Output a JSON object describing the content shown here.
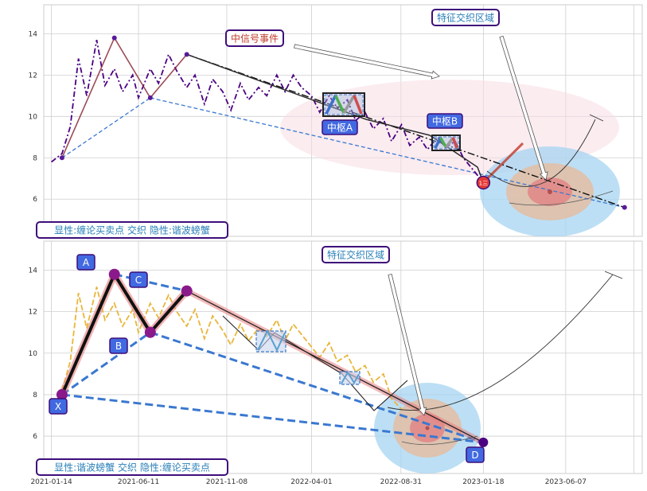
{
  "colors": {
    "background": "#ffffff",
    "grid": "#cfcfcf",
    "price_top": "#4b0082",
    "price_bottom": "#e8b63a",
    "zhongshu_box": "#3c78c8",
    "zone_outer": "#a6d4f2",
    "zone_mid": "#e0c0a8",
    "zone_inner": "#e08a8a",
    "callout_border": "#3d0e7a",
    "callout_text_red": "#c0392b",
    "callout_text_blue": "#2a7fb8",
    "pivot_fill": "#4169e1"
  },
  "chart_data": [
    {
      "type": "line",
      "panel": "top",
      "ylim": [
        4.2,
        15.4
      ],
      "yticks": [
        6,
        8,
        10,
        12,
        14
      ],
      "xlim": [
        "2021-01-01",
        "2023-10-15"
      ],
      "xticks": [
        "2021-01-14",
        "2021-06-11",
        "2021-11-08",
        "2022-04-01",
        "2022-08-31",
        "2023-01-18",
        "2023-06-07"
      ],
      "grid": true,
      "series": [
        {
          "style": "dash-dot",
          "x": [
            "2021-01-14",
            "2021-02-01",
            "2021-02-15",
            "2021-03-01",
            "2021-03-15",
            "2021-04-01",
            "2021-04-15",
            "2021-05-01",
            "2021-05-15",
            "2021-06-01",
            "2021-06-11",
            "2021-07-01",
            "2021-07-15",
            "2021-08-01",
            "2021-08-15",
            "2021-09-01",
            "2021-09-15",
            "2021-10-01",
            "2021-10-15",
            "2021-11-01",
            "2021-11-15",
            "2021-12-01",
            "2021-12-15",
            "2022-01-01",
            "2022-01-15",
            "2022-02-01",
            "2022-02-15",
            "2022-03-01",
            "2022-03-15",
            "2022-04-01",
            "2022-04-15",
            "2022-05-01",
            "2022-05-15",
            "2022-06-01",
            "2022-06-15",
            "2022-07-01",
            "2022-07-15",
            "2022-08-01",
            "2022-08-15",
            "2022-09-01",
            "2022-09-15",
            "2022-10-01",
            "2022-10-15",
            "2022-11-01",
            "2022-11-15",
            "2022-12-01",
            "2022-12-15",
            "2023-01-01",
            "2023-01-18"
          ],
          "y": [
            7.8,
            8.2,
            9.5,
            12.8,
            11.0,
            13.7,
            11.5,
            12.3,
            11.2,
            12.0,
            10.9,
            12.3,
            11.6,
            13.0,
            12.2,
            11.4,
            12.0,
            10.6,
            11.8,
            11.2,
            10.3,
            11.6,
            10.8,
            11.4,
            11.0,
            12.0,
            11.2,
            12.0,
            11.4,
            11.0,
            10.2,
            11.0,
            10.4,
            10.8,
            9.8,
            10.2,
            9.4,
            9.9,
            8.8,
            9.6,
            8.6,
            9.0,
            8.4,
            9.0,
            8.5,
            8.8,
            8.0,
            7.4,
            6.8
          ]
        }
      ],
      "pivots": [
        {
          "date": "2021-02-01",
          "value": 8.0
        },
        {
          "date": "2021-05-01",
          "value": 13.8
        },
        {
          "date": "2021-07-01",
          "value": 10.9
        },
        {
          "date": "2021-09-01",
          "value": 13.0
        },
        {
          "date": "2023-01-18",
          "value": 6.8
        },
        {
          "date": "2023-09-15",
          "value": 5.6
        }
      ],
      "labels": {
        "zhongshu_a": "中枢A",
        "zhongshu_b": "中枢B",
        "signal_event": "中信号事件",
        "feature_zone": "特征交织区域",
        "bottom_left": "显性:缠论买卖点 交织 隐性:谐波螃蟹",
        "marker": "1三"
      }
    },
    {
      "type": "line",
      "panel": "bottom",
      "ylim": [
        4.2,
        15.4
      ],
      "yticks": [
        6,
        8,
        10,
        12,
        14
      ],
      "grid": true,
      "series": [
        {
          "style": "dashed",
          "x": [
            "2021-02-01",
            "2021-02-15",
            "2021-03-01",
            "2021-03-15",
            "2021-04-01",
            "2021-04-15",
            "2021-05-01",
            "2021-05-15",
            "2021-06-01",
            "2021-06-11",
            "2021-07-01",
            "2021-07-15",
            "2021-08-01",
            "2021-08-15",
            "2021-09-01",
            "2021-09-15",
            "2021-10-01",
            "2021-10-15",
            "2021-11-01",
            "2021-11-15",
            "2021-12-01",
            "2021-12-15",
            "2022-01-01",
            "2022-01-15",
            "2022-02-01",
            "2022-02-15",
            "2022-03-01",
            "2022-03-15",
            "2022-04-01",
            "2022-04-15",
            "2022-05-01",
            "2022-05-15",
            "2022-06-01",
            "2022-06-15",
            "2022-07-01",
            "2022-07-15",
            "2022-08-01",
            "2022-08-15",
            "2022-09-01"
          ],
          "y": [
            8.2,
            9.6,
            12.9,
            11.2,
            13.2,
            11.6,
            12.4,
            11.3,
            12.1,
            11.0,
            12.4,
            11.7,
            12.8,
            12.0,
            11.3,
            12.1,
            10.7,
            11.8,
            11.1,
            10.4,
            11.4,
            10.6,
            11.2,
            10.8,
            11.6,
            10.6,
            11.4,
            10.9,
            10.3,
            9.8,
            10.5,
            9.6,
            9.9,
            9.1,
            9.4,
            8.6,
            9.0,
            7.8,
            7.3
          ]
        }
      ],
      "pattern_points": [
        {
          "label": "X",
          "date": "2021-02-01",
          "value": 8.0
        },
        {
          "label": "A",
          "date": "2021-05-01",
          "value": 13.8
        },
        {
          "label": "B",
          "date": "2021-07-01",
          "value": 11.0
        },
        {
          "label": "C",
          "date": "2021-09-01",
          "value": 13.0
        },
        {
          "label": "D",
          "date": "2023-01-18",
          "value": 5.7
        }
      ],
      "labels": {
        "feature_zone": "特征交织区域",
        "bottom_left": "显性:谐波螃蟹 交织 隐性:缠论买卖点"
      }
    }
  ]
}
